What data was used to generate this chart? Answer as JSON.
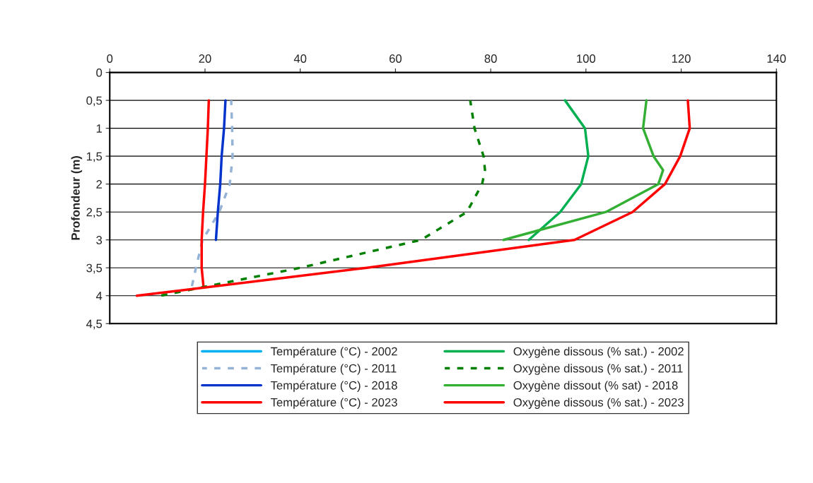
{
  "chart_data": {
    "type": "line",
    "ylabel": "Profondeur (m)",
    "xlim": [
      0,
      140
    ],
    "xticks": [
      0,
      20,
      40,
      60,
      80,
      100,
      120,
      140
    ],
    "ylim": [
      4.5,
      0
    ],
    "yticks": [
      0,
      {
        "value": 0.5,
        "label": "0,5"
      },
      1,
      {
        "value": 1.5,
        "label": "1,5"
      },
      2,
      {
        "value": 2.5,
        "label": "2,5"
      },
      3,
      {
        "value": 3.5,
        "label": "3,5"
      },
      4,
      {
        "value": 4.5,
        "label": "4,5"
      }
    ],
    "grid": "y",
    "legend": "bottom",
    "marker": "none",
    "series": [
      {
        "name": "Température (°C) - 2002",
        "color": "#00b0f0",
        "line_style": "solid",
        "x": [
          null
        ],
        "values": [
          null
        ]
      },
      {
        "name": "Température (°C) - 2011",
        "color": "#95b3d7",
        "line_style": "dotted",
        "x": [
          25.5,
          25.7,
          25.8,
          25.2,
          23,
          19.5,
          18.1,
          17.2
        ],
        "values": [
          0.5,
          1,
          1.5,
          2,
          2.5,
          3,
          3.5,
          3.85
        ]
      },
      {
        "name": "Température (°C) - 2018",
        "color": "#0033cc",
        "line_style": "solid",
        "x": [
          24.3,
          24,
          23.5,
          23.2,
          22.7,
          22.3
        ],
        "values": [
          0.5,
          1,
          1.5,
          2,
          2.5,
          3
        ]
      },
      {
        "name": "Température (°C) - 2023",
        "color": "#ff0000",
        "line_style": "solid",
        "x": [
          20.8,
          20.6,
          20.3,
          20,
          19.6,
          19.3,
          19.3,
          19.7
        ],
        "values": [
          0.5,
          1,
          1.5,
          2,
          2.5,
          3,
          3.5,
          3.85
        ]
      },
      {
        "name": "Oxygène dissous (% sat.) - 2002",
        "color": "#00b050",
        "line_style": "solid",
        "x": [
          95.6,
          99.8,
          100.5,
          99,
          94.6,
          88
        ],
        "values": [
          0.5,
          1,
          1.5,
          2,
          2.5,
          3
        ]
      },
      {
        "name": "Oxygène dissous (% sat.) - 2011",
        "color": "#008000",
        "line_style": "dotted",
        "x": [
          75.7,
          76.6,
          78.5,
          78.8,
          78.2,
          75,
          65.4,
          40,
          10.6
        ],
        "values": [
          0.5,
          1,
          1.5,
          1.75,
          2,
          2.5,
          3,
          3.5,
          4
        ]
      },
      {
        "name": "Oxygène dissout (% sat) - 2018",
        "color": "#33b033",
        "line_style": "solid",
        "x": [
          112.7,
          112,
          114.2,
          116.2,
          115.2,
          104.2,
          82.7
        ],
        "values": [
          0.5,
          1,
          1.5,
          1.75,
          2,
          2.5,
          3
        ]
      },
      {
        "name": "Oxygène dissous (% sat.) - 2023",
        "color": "#ff0000",
        "line_style": "solid",
        "x": [
          121.4,
          121.8,
          119.8,
          116.6,
          109.8,
          97.6,
          54,
          5.7
        ],
        "values": [
          0.5,
          1,
          1.5,
          2,
          2.5,
          3,
          3.5,
          4
        ]
      }
    ]
  }
}
